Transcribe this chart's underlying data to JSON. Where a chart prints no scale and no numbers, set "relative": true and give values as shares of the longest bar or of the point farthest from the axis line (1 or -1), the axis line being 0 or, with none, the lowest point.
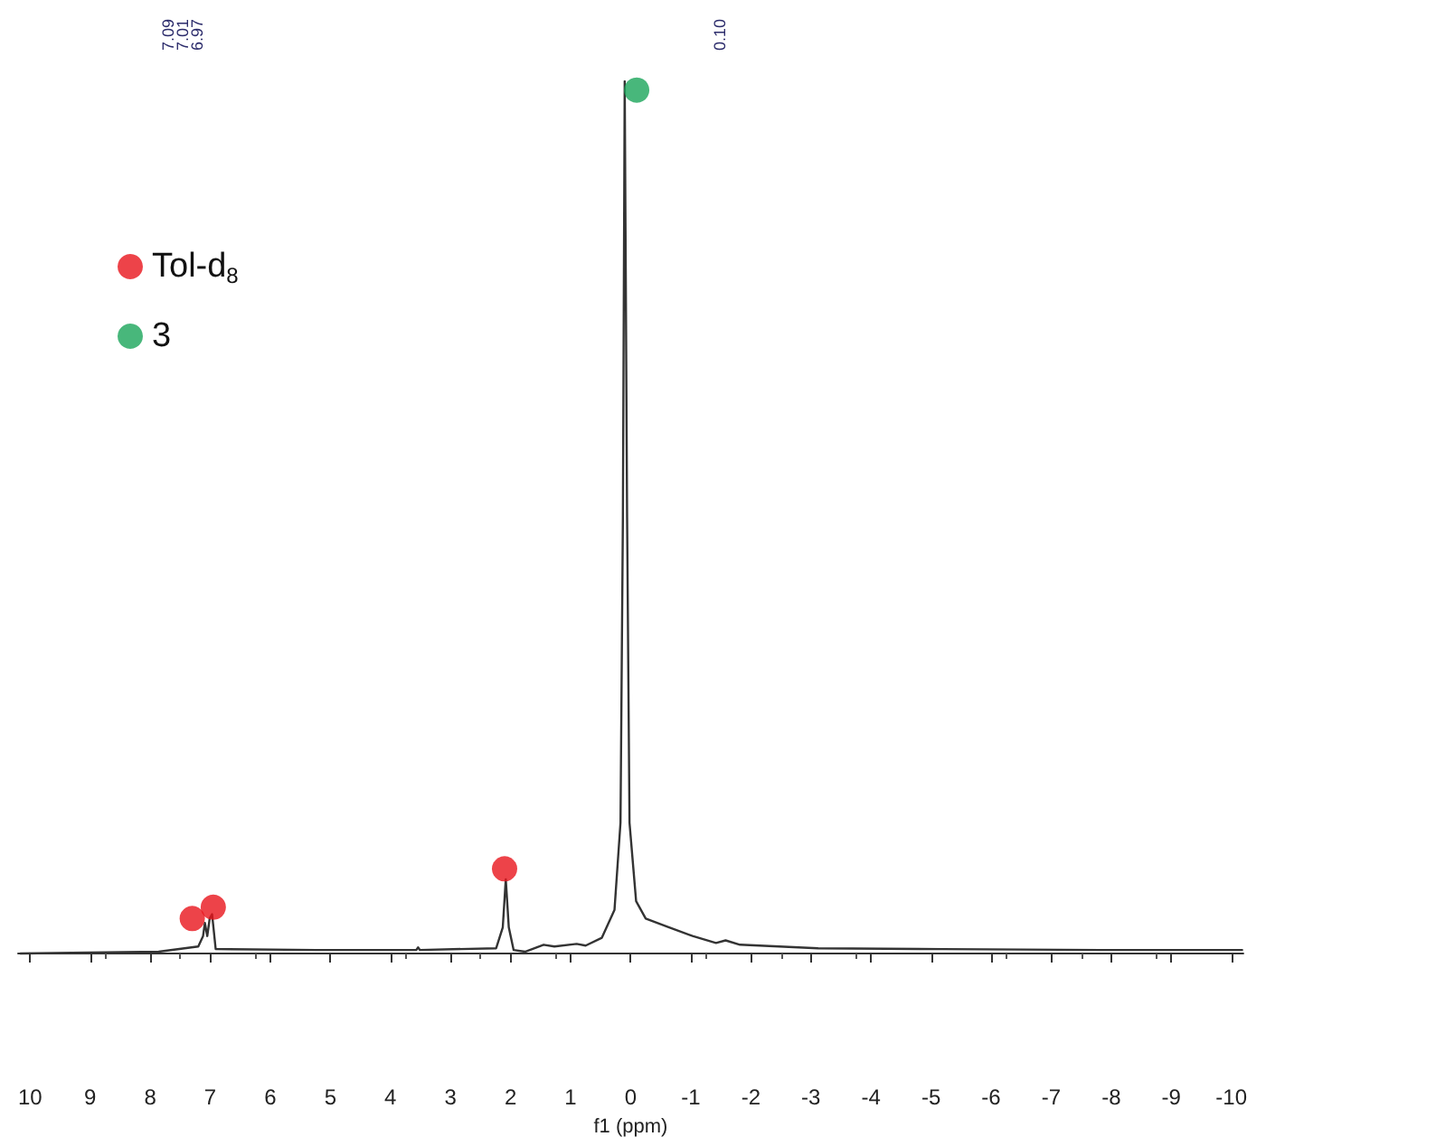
{
  "chart_data": {
    "type": "line",
    "relative": true,
    "xlabel": "f1 (ppm)",
    "xlim": [
      10.2,
      -10.2
    ],
    "xticks": [
      10,
      9,
      8,
      7,
      6,
      5,
      4,
      3,
      2,
      1,
      0,
      -1,
      -2,
      -3,
      -4,
      -5,
      -6,
      -7,
      -8,
      -9,
      -10
    ],
    "tick_labels": "x",
    "grid": false,
    "legend": "top left",
    "marker": "none",
    "line_style": "solid",
    "annotations": [
      "7.09",
      "7.01",
      "6.97",
      "0.10"
    ],
    "series": [
      {
        "color": "#333333",
        "x": [
          10.16,
          7.86,
          7.2,
          7.12,
          7.09,
          7.05,
          7.01,
          6.97,
          6.91,
          5.24,
          3.57,
          3.54,
          3.51,
          2.24,
          2.13,
          2.08,
          2.03,
          1.95,
          1.76,
          1.45,
          1.27,
          0.9,
          0.75,
          0.48,
          0.27,
          0.17,
          0.13,
          0.1,
          0.06,
          0.02,
          -0.09,
          -0.25,
          -0.64,
          -1.03,
          -1.42,
          -1.58,
          -1.82,
          -3.12,
          -5.2,
          -7.83,
          -10.18
        ],
        "values": [
          0,
          0.002,
          0.008,
          0.02,
          0.035,
          0.02,
          0.04,
          0.045,
          0.005,
          0.004,
          0.004,
          0.007,
          0.004,
          0.006,
          0.03,
          0.085,
          0.03,
          0.004,
          0.002,
          0.01,
          0.008,
          0.011,
          0.009,
          0.018,
          0.05,
          0.15,
          0.5,
          1,
          0.5,
          0.15,
          0.06,
          0.04,
          0.03,
          0.02,
          0.012,
          0.015,
          0.01,
          0.006,
          0.005,
          0.004,
          0.004
        ]
      },
      {
        "type": "scatter",
        "name": "Tol-d$_{8}$",
        "color": "#e8141b",
        "marker": "circle",
        "x": [
          7.3,
          6.95,
          2.1
        ],
        "values": [
          0.04,
          0.053,
          0.097
        ]
      },
      {
        "type": "scatter",
        "name": "3",
        "color": "#1aa55a",
        "marker": "circle",
        "x": [
          -0.1
        ],
        "values": [
          0.99
        ]
      }
    ]
  }
}
